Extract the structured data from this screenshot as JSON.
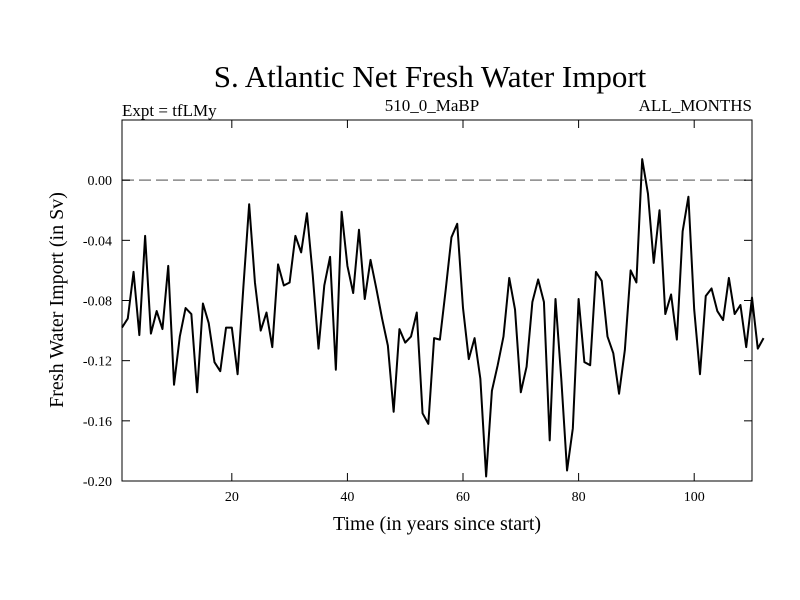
{
  "chart_data": {
    "type": "line",
    "title": "S. Atlantic Net Fresh Water Import",
    "subtitle_left": "Expt = tfLMy",
    "subtitle_center": "510_0_MaBP",
    "subtitle_right": "ALL_MONTHS",
    "xlabel": "Time (in years since start)",
    "ylabel": "Fresh Water Import (in Sv)",
    "xlim": [
      1,
      110
    ],
    "ylim": [
      -0.2,
      0.04
    ],
    "xticks": [
      20,
      40,
      60,
      80,
      100
    ],
    "xtick_labels": [
      "20",
      "40",
      "60",
      "80",
      "100"
    ],
    "yticks": [
      0.0,
      -0.04,
      -0.08,
      -0.12,
      -0.16,
      -0.2
    ],
    "ytick_labels": [
      "0.00",
      "-0.04",
      "-0.08",
      "-0.12",
      "-0.16",
      "-0.20"
    ],
    "reference_line": {
      "y": 0.0,
      "style": "dashed",
      "color": "#888888"
    },
    "series": [
      {
        "name": "Net Fresh Water Import",
        "color": "#000000",
        "x_start": 1,
        "x_step": 1,
        "values": [
          -0.098,
          -0.092,
          -0.061,
          -0.103,
          -0.037,
          -0.102,
          -0.087,
          -0.099,
          -0.057,
          -0.136,
          -0.104,
          -0.085,
          -0.089,
          -0.141,
          -0.082,
          -0.095,
          -0.121,
          -0.127,
          -0.098,
          -0.098,
          -0.129,
          -0.071,
          -0.016,
          -0.068,
          -0.1,
          -0.088,
          -0.111,
          -0.056,
          -0.07,
          -0.068,
          -0.037,
          -0.048,
          -0.022,
          -0.063,
          -0.112,
          -0.07,
          -0.051,
          -0.126,
          -0.021,
          -0.057,
          -0.075,
          -0.033,
          -0.079,
          -0.053,
          -0.072,
          -0.092,
          -0.11,
          -0.154,
          -0.099,
          -0.108,
          -0.104,
          -0.088,
          -0.155,
          -0.162,
          -0.105,
          -0.106,
          -0.073,
          -0.038,
          -0.029,
          -0.085,
          -0.119,
          -0.105,
          -0.132,
          -0.197,
          -0.14,
          -0.123,
          -0.104,
          -0.065,
          -0.086,
          -0.141,
          -0.124,
          -0.081,
          -0.066,
          -0.081,
          -0.173,
          -0.079,
          -0.132,
          -0.193,
          -0.165,
          -0.079,
          -0.121,
          -0.123,
          -0.061,
          -0.067,
          -0.104,
          -0.115,
          -0.142,
          -0.113,
          -0.06,
          -0.068,
          0.014,
          -0.009,
          -0.055,
          -0.02,
          -0.089,
          -0.076,
          -0.106,
          -0.034,
          -0.011,
          -0.086,
          -0.129,
          -0.077,
          -0.072,
          -0.087,
          -0.093,
          -0.065,
          -0.089,
          -0.083,
          -0.111,
          -0.078,
          -0.112,
          -0.105
        ]
      }
    ]
  }
}
